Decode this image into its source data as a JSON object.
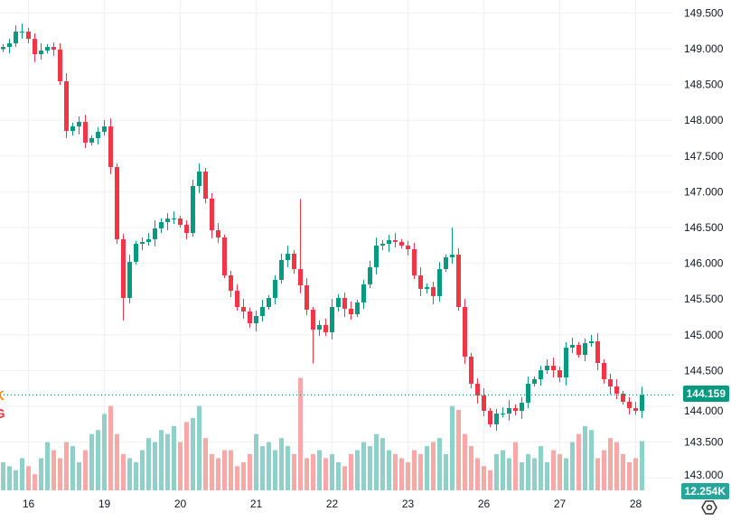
{
  "chart_data": {
    "type": "candlestick",
    "interval_note": "approx. 2-hour bars",
    "price_axis": {
      "ticks": [
        "149.500",
        "149.000",
        "148.500",
        "148.000",
        "147.500",
        "147.000",
        "146.500",
        "146.000",
        "145.500",
        "145.000",
        "144.500",
        "144.000",
        "143.500",
        "143.000"
      ],
      "range": [
        143.0,
        149.5
      ]
    },
    "x_axis": {
      "ticks": [
        "16",
        "19",
        "20",
        "21",
        "22",
        "23",
        "26",
        "27",
        "28"
      ],
      "tick_bar_index": [
        4,
        16,
        28,
        40,
        52,
        64,
        76,
        88,
        100
      ]
    },
    "closes": [
      149.025,
      149.076,
      149.24,
      149.24,
      149.139,
      148.924,
      148.975,
      149.025,
      148.988,
      148.546,
      147.851,
      147.914,
      147.977,
      147.687,
      147.75,
      147.839,
      147.914,
      147.346,
      146.336,
      145.515,
      146.02,
      146.273,
      146.298,
      146.336,
      146.488,
      146.576,
      146.626,
      146.626,
      146.538,
      146.424,
      147.081,
      147.283,
      146.904,
      146.462,
      146.361,
      145.831,
      145.616,
      145.389,
      145.326,
      145.162,
      145.263,
      145.389,
      145.515,
      145.768,
      146.046,
      146.134,
      145.919,
      145.692,
      145.351,
      145.073,
      145.137,
      145.036,
      145.389,
      145.515,
      145.364,
      145.288,
      145.452,
      145.705,
      145.945,
      146.248,
      146.273,
      146.323,
      146.298,
      146.248,
      146.197,
      145.831,
      145.642,
      145.667,
      145.541,
      145.919,
      146.084,
      146.121,
      145.389,
      144.695,
      144.316,
      144.152,
      143.937,
      143.748,
      143.899,
      143.899,
      143.975,
      143.937,
      144.051,
      144.316,
      144.379,
      144.505,
      144.568,
      144.505,
      144.404,
      144.821,
      144.859,
      144.72,
      144.884,
      144.909,
      144.606,
      144.379,
      144.278,
      144.177,
      144.063,
      143.975,
      143.937,
      144.159
    ],
    "spikes": [
      {
        "index": 47,
        "high": 146.9
      },
      {
        "index": 71,
        "high": 146.5
      },
      {
        "index": 19,
        "low": 145.2
      },
      {
        "index": 49,
        "low": 144.6
      }
    ],
    "volume_k": [
      7,
      6,
      5,
      8,
      6,
      4,
      8,
      12,
      10,
      8,
      12,
      11,
      7,
      10,
      14,
      15,
      19,
      21,
      14,
      9,
      8,
      7,
      10,
      13,
      12,
      15,
      14,
      16,
      12,
      17,
      18,
      21,
      13,
      9,
      8,
      10,
      10,
      6,
      7,
      9,
      14,
      11,
      12,
      10,
      13,
      11,
      9,
      28,
      8,
      9,
      10,
      8,
      9,
      7,
      6,
      9,
      10,
      12,
      11,
      14,
      13,
      10,
      9,
      8,
      7,
      10,
      9,
      11,
      12,
      13,
      9,
      21,
      20,
      14,
      11,
      8,
      6,
      5,
      9,
      10,
      8,
      12,
      7,
      9,
      8,
      11,
      7,
      10,
      9,
      8,
      12,
      14,
      16,
      15,
      8,
      10,
      13,
      12,
      9,
      7,
      8,
      12.254
    ],
    "last_price": "144.159",
    "last_volume": "12.254K",
    "colors": {
      "up": "#089981",
      "down": "#f23645",
      "vol_up": "#8fd1c9",
      "vol_down": "#f7a9a7",
      "grid": "#f0f0f0",
      "badge": "#089981",
      "vol_badge": "#26a69a"
    }
  },
  "legend_fragments": [
    "K",
    "G"
  ]
}
